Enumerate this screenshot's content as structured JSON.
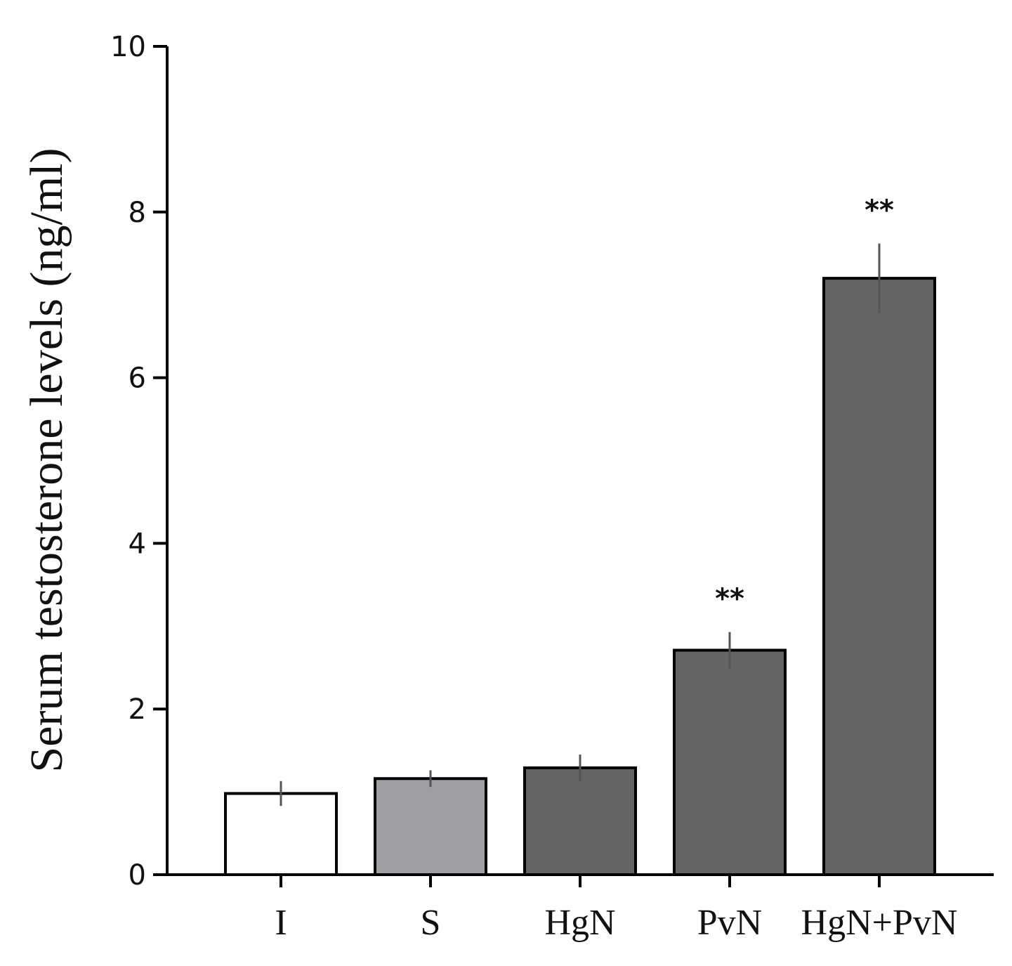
{
  "chart_data": {
    "type": "bar",
    "title": "",
    "xlabel": "",
    "ylabel": "Serum testosterone levels (ng/ml)",
    "ylim": [
      0,
      10
    ],
    "yticks": [
      "0",
      "2",
      "4",
      "6",
      "8",
      "10"
    ],
    "categories": [
      "I",
      "S",
      "HgN",
      "PvN",
      "HgN+PvN"
    ],
    "values": [
      0.98,
      1.16,
      1.29,
      2.71,
      7.2
    ],
    "error": [
      0.15,
      0.1,
      0.16,
      0.22,
      0.42
    ],
    "significance": [
      "",
      "",
      "",
      "**",
      "**"
    ],
    "bar_colors": [
      "#ffffff",
      "#9e9ea3",
      "#646464",
      "#646464",
      "#646464"
    ],
    "grid": false
  }
}
